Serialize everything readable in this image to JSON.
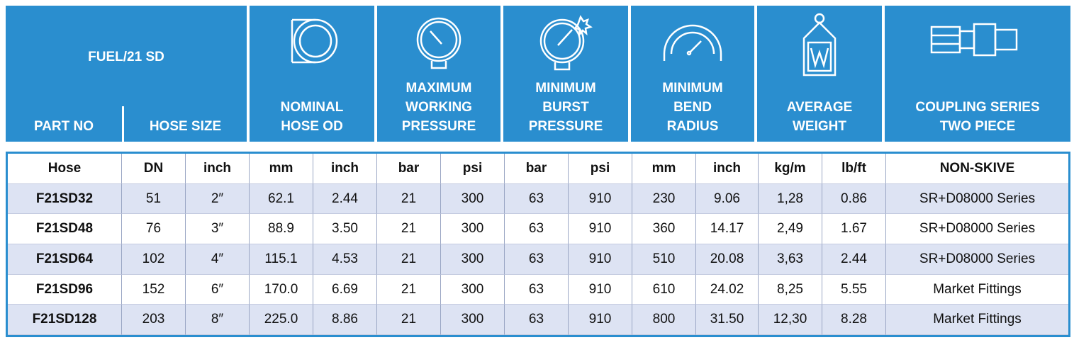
{
  "header": {
    "title": "FUEL/21 SD",
    "part_no": "PART NO",
    "hose_size": "HOSE SIZE",
    "columns": [
      [
        "NOMINAL",
        "HOSE OD"
      ],
      [
        "MAXIMUM",
        "WORKING",
        "PRESSURE"
      ],
      [
        "MINIMUM",
        "BURST",
        "PRESSURE"
      ],
      [
        "MINIMUM",
        "BEND",
        "RADIUS"
      ],
      [
        "AVERAGE",
        "WEIGHT"
      ],
      [
        "COUPLING SERIES",
        "TWO PIECE"
      ]
    ]
  },
  "table": {
    "units": [
      "Hose",
      "DN",
      "inch",
      "mm",
      "inch",
      "bar",
      "psi",
      "bar",
      "psi",
      "mm",
      "inch",
      "kg/m",
      "lb/ft",
      "NON-SKIVE"
    ],
    "rows": [
      [
        "F21SD32",
        "51",
        "2″",
        "62.1",
        "2.44",
        "21",
        "300",
        "63",
        "910",
        "230",
        "9.06",
        "1,28",
        "0.86",
        "SR+D08000 Series"
      ],
      [
        "F21SD48",
        "76",
        "3″",
        "88.9",
        "3.50",
        "21",
        "300",
        "63",
        "910",
        "360",
        "14.17",
        "2,49",
        "1.67",
        "SR+D08000 Series"
      ],
      [
        "F21SD64",
        "102",
        "4″",
        "115.1",
        "4.53",
        "21",
        "300",
        "63",
        "910",
        "510",
        "20.08",
        "3,63",
        "2.44",
        "SR+D08000 Series"
      ],
      [
        "F21SD96",
        "152",
        "6″",
        "170.0",
        "6.69",
        "21",
        "300",
        "63",
        "910",
        "610",
        "24.02",
        "8,25",
        "5.55",
        "Market Fittings"
      ],
      [
        "F21SD128",
        "203",
        "8″",
        "225.0",
        "8.86",
        "21",
        "300",
        "63",
        "910",
        "800",
        "31.50",
        "12,30",
        "8.28",
        "Market Fittings"
      ]
    ]
  }
}
